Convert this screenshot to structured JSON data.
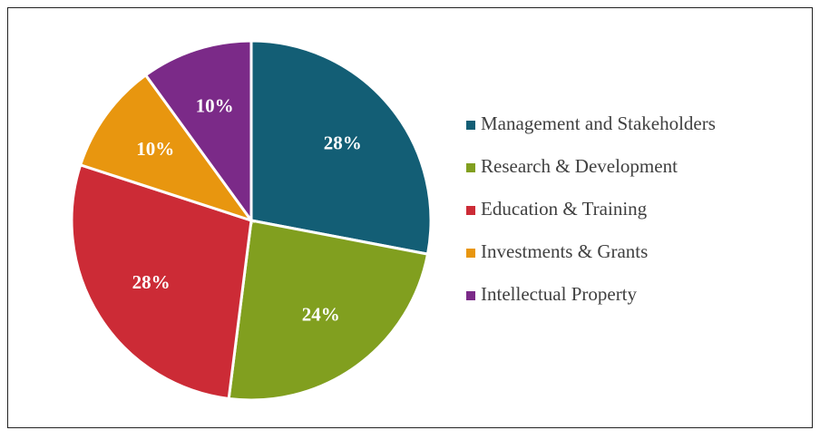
{
  "chart_data": {
    "type": "pie",
    "categories": [
      "Management and Stakeholders",
      "Research & Development",
      "Education & Training",
      "Investments & Grants",
      "Intellectual Property"
    ],
    "values": [
      28,
      24,
      28,
      10,
      10
    ],
    "value_labels": [
      "28%",
      "24%",
      "28%",
      "10%",
      "10%"
    ],
    "colors": [
      "#135e75",
      "#819f1f",
      "#cc2b36",
      "#e8960f",
      "#7b2a88"
    ],
    "legend": "right"
  }
}
